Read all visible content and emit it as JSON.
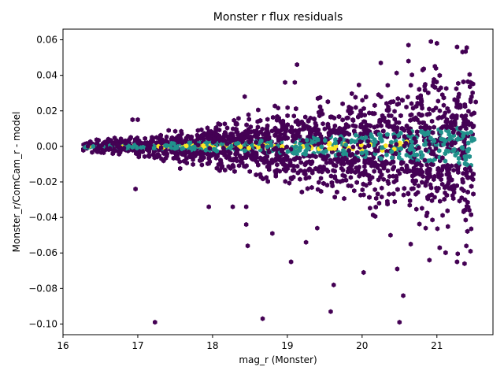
{
  "chart_data": {
    "type": "scatter",
    "subtype": "hexbin",
    "title": "Monster r flux residuals",
    "xlabel": "mag_r (Monster)",
    "ylabel": "Monster_r/ComCam_r - model",
    "xlim": [
      16.0,
      21.75
    ],
    "ylim": [
      -0.106,
      0.066
    ],
    "x_ticks": [
      16,
      17,
      18,
      19,
      20,
      21
    ],
    "y_ticks": [
      -0.1,
      -0.08,
      -0.06,
      -0.04,
      -0.02,
      0.0,
      0.02,
      0.04,
      0.06
    ],
    "x_tick_labels": [
      "16",
      "17",
      "18",
      "19",
      "20",
      "21"
    ],
    "y_tick_labels": [
      "−0.10",
      "−0.08",
      "−0.06",
      "−0.04",
      "−0.02",
      "0.00",
      "0.02",
      "0.04",
      "0.06"
    ],
    "grid": false,
    "colormap": "viridis",
    "colors": {
      "low": "#440154",
      "mid": "#21918c",
      "high": "#fde725"
    },
    "x_range_data": [
      16.25,
      21.5
    ],
    "outliers": [
      {
        "x": 17.23,
        "y": -0.099
      },
      {
        "x": 18.67,
        "y": -0.097
      },
      {
        "x": 20.5,
        "y": -0.099
      },
      {
        "x": 19.58,
        "y": -0.093
      },
      {
        "x": 20.55,
        "y": -0.084
      },
      {
        "x": 19.62,
        "y": -0.078
      },
      {
        "x": 20.02,
        "y": -0.071
      },
      {
        "x": 20.47,
        "y": -0.069
      },
      {
        "x": 21.37,
        "y": -0.066
      },
      {
        "x": 19.05,
        "y": -0.065
      },
      {
        "x": 21.27,
        "y": -0.065
      },
      {
        "x": 20.9,
        "y": -0.064
      },
      {
        "x": 18.47,
        "y": -0.056
      },
      {
        "x": 19.25,
        "y": -0.054
      },
      {
        "x": 18.8,
        "y": -0.049
      },
      {
        "x": 20.65,
        "y": -0.055
      },
      {
        "x": 21.45,
        "y": -0.059
      },
      {
        "x": 19.4,
        "y": -0.046
      },
      {
        "x": 20.38,
        "y": -0.05
      },
      {
        "x": 18.45,
        "y": -0.044
      },
      {
        "x": 20.85,
        "y": -0.046
      },
      {
        "x": 18.27,
        "y": -0.034
      },
      {
        "x": 18.45,
        "y": -0.034
      },
      {
        "x": 17.95,
        "y": -0.034
      },
      {
        "x": 20.25,
        "y": 0.047
      },
      {
        "x": 19.13,
        "y": 0.046
      },
      {
        "x": 20.62,
        "y": 0.048
      },
      {
        "x": 20.62,
        "y": 0.057
      },
      {
        "x": 20.92,
        "y": 0.059
      },
      {
        "x": 21.27,
        "y": 0.056
      },
      {
        "x": 21.0,
        "y": 0.058
      },
      {
        "x": 19.1,
        "y": 0.036
      },
      {
        "x": 18.97,
        "y": 0.036
      },
      {
        "x": 21.45,
        "y": 0.036
      },
      {
        "x": 18.43,
        "y": 0.028
      },
      {
        "x": 17.0,
        "y": 0.015
      },
      {
        "x": 16.93,
        "y": 0.015
      },
      {
        "x": 16.97,
        "y": -0.024
      },
      {
        "x": 21.52,
        "y": 0.025
      }
    ]
  }
}
